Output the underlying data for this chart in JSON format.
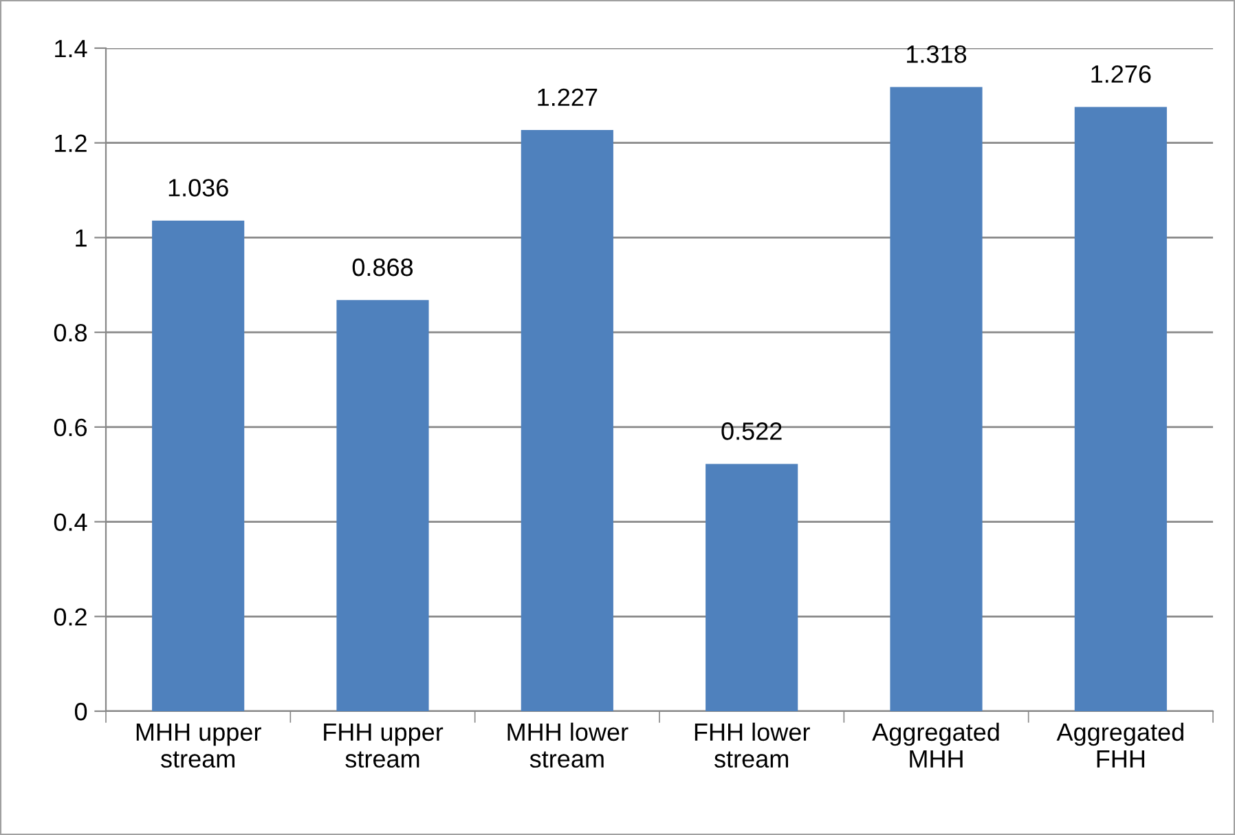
{
  "chart_data": {
    "type": "bar",
    "categories": [
      "MHH upper\nstream",
      "FHH upper\nstream",
      "MHH lower\nstream",
      "FHH lower\nstream",
      "Aggregated\nMHH",
      "Aggregated\nFHH"
    ],
    "values": [
      1.036,
      0.868,
      1.227,
      0.522,
      1.318,
      1.276
    ],
    "color": "#4f81bd",
    "ylim": [
      0,
      1.4
    ],
    "yticks": [
      0,
      0.2,
      0.4,
      0.6,
      0.8,
      1,
      1.2,
      1.4
    ],
    "grid": "y",
    "data_labels": true
  }
}
